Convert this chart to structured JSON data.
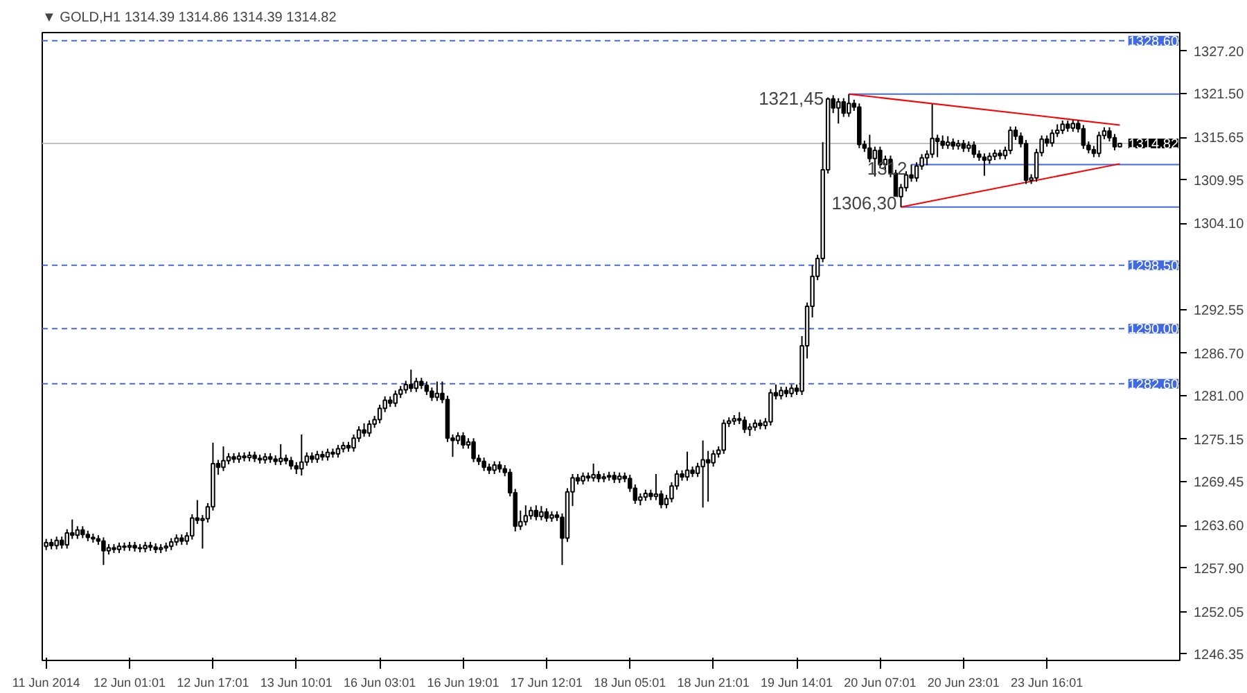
{
  "chart_data": {
    "type": "candlestick",
    "title": "▼ GOLD,H1  1314.39 1314.86 1314.39 1314.82",
    "categories": [
      "11 Jun 2014",
      null,
      null,
      null,
      null,
      null,
      null,
      null,
      null,
      null,
      null,
      null,
      null,
      null,
      null,
      null,
      "12 Jun 01:01",
      null,
      null,
      null,
      null,
      null,
      null,
      null,
      null,
      null,
      null,
      null,
      null,
      null,
      null,
      null,
      "12 Jun 17:01",
      null,
      null,
      null,
      null,
      null,
      null,
      null,
      null,
      null,
      null,
      null,
      null,
      null,
      null,
      null,
      "13 Jun 10:01",
      null,
      null,
      null,
      null,
      null,
      null,
      null,
      null,
      null,
      null,
      null,
      null,
      null,
      null,
      null,
      "16 Jun 03:01",
      null,
      null,
      null,
      null,
      null,
      null,
      null,
      null,
      null,
      null,
      null,
      null,
      null,
      null,
      null,
      "16 Jun 19:01",
      null,
      null,
      null,
      null,
      null,
      null,
      null,
      null,
      null,
      null,
      null,
      null,
      null,
      null,
      null,
      "17 Jun 12:01",
      null,
      null,
      null,
      null,
      null,
      null,
      null,
      null,
      null,
      null,
      null,
      null,
      null,
      null,
      null,
      "18 Jun 05:01",
      null,
      null,
      null,
      null,
      null,
      null,
      null,
      null,
      null,
      null,
      null,
      null,
      null,
      null,
      null,
      "18 Jun 21:01",
      null,
      null,
      null,
      null,
      null,
      null,
      null,
      null,
      null,
      null,
      null,
      null,
      null,
      null,
      null,
      "19 Jun 14:01",
      null,
      null,
      null,
      null,
      null,
      null,
      null,
      null,
      null,
      null,
      null,
      null,
      null,
      null,
      null,
      "20 Jun 07:01",
      null,
      null,
      null,
      null,
      null,
      null,
      null,
      null,
      null,
      null,
      null,
      null,
      null,
      null,
      null,
      "20 Jun 23:01",
      null,
      null,
      null,
      null,
      null,
      null,
      null,
      null,
      null,
      null,
      null,
      null,
      null,
      null,
      null,
      "23 Jun 16:01",
      null,
      null,
      null,
      null,
      null,
      null,
      null,
      null,
      null,
      null,
      null,
      null,
      null,
      null
    ],
    "ohlc": [
      [
        1260.8,
        1261.8,
        1260.3,
        1261.3
      ],
      [
        1261.3,
        1261.8,
        1260.4,
        1260.9
      ],
      [
        1260.9,
        1262.1,
        1260.4,
        1261.6
      ],
      [
        1261.6,
        1262.1,
        1260.5,
        1261.0
      ],
      [
        1261.0,
        1263.1,
        1260.5,
        1262.6
      ],
      [
        1262.6,
        1264.4,
        1261.8,
        1262.3
      ],
      [
        1262.3,
        1263.5,
        1261.8,
        1263.0
      ],
      [
        1263.0,
        1263.5,
        1261.9,
        1262.4
      ],
      [
        1262.4,
        1262.9,
        1261.5,
        1262.0
      ],
      [
        1262.0,
        1262.5,
        1261.3,
        1261.8
      ],
      [
        1261.8,
        1262.3,
        1261.0,
        1261.5
      ],
      [
        1261.5,
        1262.0,
        1258.3,
        1260.2
      ],
      [
        1260.2,
        1261.1,
        1259.7,
        1260.6
      ],
      [
        1260.6,
        1261.1,
        1259.9,
        1260.4
      ],
      [
        1260.4,
        1261.3,
        1259.9,
        1260.8
      ],
      [
        1260.8,
        1261.3,
        1260.2,
        1260.7
      ],
      [
        1260.7,
        1261.4,
        1260.2,
        1260.9
      ],
      [
        1260.9,
        1261.4,
        1260.1,
        1260.6
      ],
      [
        1260.6,
        1261.1,
        1260.0,
        1260.5
      ],
      [
        1260.5,
        1261.4,
        1260.0,
        1260.9
      ],
      [
        1260.9,
        1261.4,
        1260.2,
        1260.7
      ],
      [
        1260.7,
        1261.2,
        1259.9,
        1260.4
      ],
      [
        1260.4,
        1261.1,
        1259.9,
        1260.6
      ],
      [
        1260.6,
        1261.3,
        1260.1,
        1260.8
      ],
      [
        1260.8,
        1261.9,
        1260.3,
        1261.4
      ],
      [
        1261.4,
        1262.4,
        1260.9,
        1261.9
      ],
      [
        1261.9,
        1262.4,
        1261.0,
        1261.5
      ],
      [
        1261.5,
        1262.7,
        1261.0,
        1262.2
      ],
      [
        1262.2,
        1265.1,
        1261.7,
        1264.6
      ],
      [
        1264.6,
        1267.0,
        1263.8,
        1264.3
      ],
      [
        1264.3,
        1265.0,
        1260.5,
        1264.5
      ],
      [
        1264.5,
        1266.6,
        1264.0,
        1266.1
      ],
      [
        1266.1,
        1274.7,
        1265.6,
        1271.9
      ],
      [
        1271.9,
        1272.4,
        1270.4,
        1271.4
      ],
      [
        1271.4,
        1274.2,
        1270.9,
        1272.3
      ],
      [
        1272.3,
        1273.3,
        1271.8,
        1272.8
      ],
      [
        1272.8,
        1273.3,
        1272.0,
        1272.5
      ],
      [
        1272.5,
        1273.4,
        1272.0,
        1272.9
      ],
      [
        1272.9,
        1273.4,
        1272.2,
        1272.7
      ],
      [
        1272.7,
        1273.5,
        1272.2,
        1273.0
      ],
      [
        1273.0,
        1273.5,
        1272.1,
        1272.6
      ],
      [
        1272.6,
        1273.1,
        1271.9,
        1272.4
      ],
      [
        1272.4,
        1273.3,
        1271.9,
        1272.8
      ],
      [
        1272.8,
        1273.3,
        1272.0,
        1272.5
      ],
      [
        1272.5,
        1273.0,
        1271.7,
        1272.2
      ],
      [
        1272.2,
        1274.5,
        1271.7,
        1272.6
      ],
      [
        1272.6,
        1273.1,
        1271.8,
        1272.3
      ],
      [
        1272.3,
        1272.8,
        1271.1,
        1271.6
      ],
      [
        1271.6,
        1272.1,
        1270.5,
        1271.2
      ],
      [
        1271.2,
        1275.8,
        1270.3,
        1272.1
      ],
      [
        1272.1,
        1273.4,
        1271.6,
        1272.9
      ],
      [
        1272.9,
        1273.4,
        1272.0,
        1272.5
      ],
      [
        1272.5,
        1273.6,
        1272.0,
        1273.1
      ],
      [
        1273.1,
        1273.6,
        1272.3,
        1272.8
      ],
      [
        1272.8,
        1273.9,
        1272.3,
        1273.4
      ],
      [
        1273.4,
        1273.9,
        1272.7,
        1273.2
      ],
      [
        1273.2,
        1274.4,
        1272.7,
        1273.9
      ],
      [
        1273.9,
        1274.8,
        1273.4,
        1274.3
      ],
      [
        1274.3,
        1274.8,
        1273.5,
        1274.0
      ],
      [
        1274.0,
        1275.8,
        1273.5,
        1275.3
      ],
      [
        1275.3,
        1276.9,
        1274.8,
        1276.4
      ],
      [
        1276.4,
        1277.3,
        1275.5,
        1276.0
      ],
      [
        1276.0,
        1277.7,
        1275.5,
        1277.2
      ],
      [
        1277.2,
        1278.3,
        1276.7,
        1277.8
      ],
      [
        1277.8,
        1279.8,
        1277.3,
        1279.3
      ],
      [
        1279.3,
        1280.9,
        1278.8,
        1280.4
      ],
      [
        1280.4,
        1280.9,
        1279.5,
        1280.0
      ],
      [
        1280.0,
        1281.7,
        1279.5,
        1281.2
      ],
      [
        1281.2,
        1282.3,
        1280.7,
        1281.8
      ],
      [
        1281.8,
        1283.0,
        1281.3,
        1282.5
      ],
      [
        1282.5,
        1284.5,
        1281.5,
        1282.0
      ],
      [
        1282.0,
        1283.4,
        1281.5,
        1282.9
      ],
      [
        1282.9,
        1283.4,
        1281.9,
        1282.4
      ],
      [
        1282.4,
        1282.9,
        1281.1,
        1281.6
      ],
      [
        1281.6,
        1282.1,
        1280.3,
        1280.8
      ],
      [
        1280.8,
        1282.9,
        1280.3,
        1281.3
      ],
      [
        1281.3,
        1282.9,
        1280.0,
        1280.5
      ],
      [
        1280.5,
        1281.0,
        1274.8,
        1275.3
      ],
      [
        1275.3,
        1275.8,
        1272.8,
        1275.0
      ],
      [
        1275.0,
        1276.1,
        1274.5,
        1275.6
      ],
      [
        1275.6,
        1276.1,
        1273.9,
        1274.4
      ],
      [
        1274.4,
        1275.3,
        1273.9,
        1274.8
      ],
      [
        1274.8,
        1275.3,
        1272.1,
        1272.6
      ],
      [
        1272.6,
        1273.1,
        1271.7,
        1272.2
      ],
      [
        1272.2,
        1272.7,
        1270.9,
        1271.4
      ],
      [
        1271.4,
        1271.9,
        1270.5,
        1271.0
      ],
      [
        1271.0,
        1272.2,
        1270.5,
        1271.7
      ],
      [
        1271.7,
        1272.2,
        1270.7,
        1271.2
      ],
      [
        1271.2,
        1271.7,
        1270.2,
        1270.7
      ],
      [
        1270.7,
        1271.2,
        1267.5,
        1268.0
      ],
      [
        1268.0,
        1268.5,
        1262.8,
        1263.5
      ],
      [
        1263.5,
        1265.6,
        1263.0,
        1264.1
      ],
      [
        1264.1,
        1266.3,
        1263.6,
        1264.9
      ],
      [
        1264.9,
        1266.1,
        1264.4,
        1265.6
      ],
      [
        1265.6,
        1266.3,
        1264.3,
        1264.8
      ],
      [
        1264.8,
        1266.2,
        1264.3,
        1265.4
      ],
      [
        1265.4,
        1265.9,
        1264.1,
        1264.6
      ],
      [
        1264.6,
        1265.5,
        1264.1,
        1265.0
      ],
      [
        1265.0,
        1265.5,
        1264.2,
        1264.7
      ],
      [
        1264.7,
        1265.2,
        1258.3,
        1261.9
      ],
      [
        1261.9,
        1268.6,
        1261.4,
        1268.1
      ],
      [
        1268.1,
        1270.5,
        1266.2,
        1270.0
      ],
      [
        1270.0,
        1270.5,
        1269.1,
        1269.6
      ],
      [
        1269.6,
        1270.7,
        1269.1,
        1270.2
      ],
      [
        1270.2,
        1270.7,
        1269.5,
        1270.0
      ],
      [
        1270.0,
        1271.9,
        1269.5,
        1270.4
      ],
      [
        1270.4,
        1270.9,
        1269.4,
        1269.9
      ],
      [
        1269.9,
        1270.6,
        1269.4,
        1270.1
      ],
      [
        1270.1,
        1270.8,
        1269.6,
        1270.3
      ],
      [
        1270.3,
        1270.8,
        1269.3,
        1269.8
      ],
      [
        1269.8,
        1270.7,
        1269.3,
        1270.2
      ],
      [
        1270.2,
        1270.7,
        1269.4,
        1269.9
      ],
      [
        1269.9,
        1270.4,
        1268.1,
        1268.6
      ],
      [
        1268.6,
        1269.1,
        1266.5,
        1267.0
      ],
      [
        1267.0,
        1267.9,
        1266.3,
        1267.4
      ],
      [
        1267.4,
        1268.4,
        1266.9,
        1267.9
      ],
      [
        1267.9,
        1268.4,
        1267.0,
        1267.5
      ],
      [
        1267.5,
        1270.5,
        1267.0,
        1267.8
      ],
      [
        1267.8,
        1268.3,
        1265.9,
        1266.4
      ],
      [
        1266.4,
        1267.7,
        1265.9,
        1267.2
      ],
      [
        1267.2,
        1269.4,
        1266.7,
        1268.9
      ],
      [
        1268.9,
        1271.0,
        1268.4,
        1270.5
      ],
      [
        1270.5,
        1271.0,
        1269.6,
        1270.1
      ],
      [
        1270.1,
        1273.5,
        1269.6,
        1271.0
      ],
      [
        1271.0,
        1271.5,
        1270.1,
        1270.6
      ],
      [
        1270.6,
        1272.0,
        1270.1,
        1271.5
      ],
      [
        1271.5,
        1275.0,
        1266.0,
        1272.4
      ],
      [
        1272.4,
        1273.6,
        1266.8,
        1272.0
      ],
      [
        1272.0,
        1273.7,
        1271.5,
        1273.2
      ],
      [
        1273.2,
        1274.2,
        1272.7,
        1273.7
      ],
      [
        1273.7,
        1277.8,
        1273.2,
        1277.3
      ],
      [
        1277.3,
        1278.1,
        1276.8,
        1277.6
      ],
      [
        1277.6,
        1278.4,
        1277.1,
        1277.9
      ],
      [
        1277.9,
        1278.8,
        1277.2,
        1277.7
      ],
      [
        1277.7,
        1278.2,
        1276.0,
        1276.5
      ],
      [
        1276.5,
        1277.3,
        1275.6,
        1276.8
      ],
      [
        1276.8,
        1277.8,
        1276.3,
        1277.3
      ],
      [
        1277.3,
        1277.8,
        1276.5,
        1277.0
      ],
      [
        1277.0,
        1278.0,
        1276.5,
        1277.5
      ],
      [
        1277.5,
        1281.9,
        1277.0,
        1281.4
      ],
      [
        1281.4,
        1282.5,
        1280.5,
        1281.0
      ],
      [
        1281.0,
        1282.2,
        1280.5,
        1281.7
      ],
      [
        1281.7,
        1282.2,
        1280.8,
        1281.3
      ],
      [
        1281.3,
        1282.5,
        1280.8,
        1282.0
      ],
      [
        1282.0,
        1282.5,
        1281.1,
        1281.6
      ],
      [
        1281.6,
        1289.0,
        1281.1,
        1287.7
      ],
      [
        1287.7,
        1293.5,
        1286.0,
        1293.0
      ],
      [
        1293.0,
        1298.5,
        1291.5,
        1297.0
      ],
      [
        1297.0,
        1299.9,
        1296.5,
        1299.4
      ],
      [
        1299.4,
        1315.0,
        1298.9,
        1311.3
      ],
      [
        1311.3,
        1321.0,
        1310.8,
        1320.8
      ],
      [
        1320.8,
        1321.3,
        1318.9,
        1319.6
      ],
      [
        1319.6,
        1320.9,
        1317.5,
        1320.4
      ],
      [
        1320.4,
        1320.9,
        1318.4,
        1318.9
      ],
      [
        1318.9,
        1321.45,
        1318.4,
        1320.2
      ],
      [
        1320.2,
        1320.7,
        1319.2,
        1319.7
      ],
      [
        1319.7,
        1320.2,
        1314.2,
        1314.7
      ],
      [
        1314.7,
        1315.2,
        1313.7,
        1314.2
      ],
      [
        1314.2,
        1316.0,
        1312.3,
        1312.8
      ],
      [
        1312.8,
        1314.4,
        1310.4,
        1313.9
      ],
      [
        1313.9,
        1314.4,
        1311.5,
        1312.0
      ],
      [
        1312.0,
        1313.2,
        1311.2,
        1312.7
      ],
      [
        1312.7,
        1313.2,
        1310.3,
        1310.8
      ],
      [
        1310.8,
        1311.3,
        1307.2,
        1307.7
      ],
      [
        1307.7,
        1309.4,
        1306.3,
        1308.9
      ],
      [
        1308.9,
        1311.1,
        1308.4,
        1310.6
      ],
      [
        1310.6,
        1312.0,
        1309.7,
        1310.2
      ],
      [
        1310.2,
        1312.3,
        1309.7,
        1311.8
      ],
      [
        1311.8,
        1313.4,
        1311.3,
        1312.9
      ],
      [
        1312.9,
        1313.9,
        1311.9,
        1313.4
      ],
      [
        1313.4,
        1320.1,
        1312.9,
        1315.5
      ],
      [
        1315.5,
        1316.0,
        1313.0,
        1315.1
      ],
      [
        1315.1,
        1315.9,
        1314.1,
        1314.6
      ],
      [
        1314.6,
        1315.8,
        1314.1,
        1315.0
      ],
      [
        1315.0,
        1315.5,
        1314.0,
        1314.5
      ],
      [
        1314.5,
        1315.3,
        1314.0,
        1314.8
      ],
      [
        1314.8,
        1315.3,
        1313.7,
        1314.2
      ],
      [
        1314.2,
        1315.1,
        1313.7,
        1314.6
      ],
      [
        1314.6,
        1315.1,
        1312.9,
        1313.4
      ],
      [
        1313.4,
        1313.9,
        1312.5,
        1313.0
      ],
      [
        1313.0,
        1313.5,
        1310.5,
        1312.6
      ],
      [
        1312.6,
        1313.6,
        1312.1,
        1313.1
      ],
      [
        1313.1,
        1314.0,
        1312.6,
        1313.5
      ],
      [
        1313.5,
        1314.0,
        1312.7,
        1313.2
      ],
      [
        1313.2,
        1314.4,
        1312.7,
        1313.9
      ],
      [
        1313.9,
        1317.1,
        1313.4,
        1316.6
      ],
      [
        1316.6,
        1317.1,
        1315.3,
        1315.8
      ],
      [
        1315.8,
        1316.3,
        1314.3,
        1314.8
      ],
      [
        1314.8,
        1315.3,
        1309.4,
        1309.9
      ],
      [
        1309.9,
        1310.7,
        1309.4,
        1310.2
      ],
      [
        1310.2,
        1314.1,
        1309.7,
        1313.6
      ],
      [
        1313.6,
        1315.9,
        1313.1,
        1315.4
      ],
      [
        1315.4,
        1315.9,
        1314.4,
        1314.9
      ],
      [
        1314.9,
        1316.7,
        1314.4,
        1316.2
      ],
      [
        1316.2,
        1317.4,
        1315.7,
        1316.6
      ],
      [
        1316.6,
        1317.9,
        1316.1,
        1317.4
      ],
      [
        1317.4,
        1317.9,
        1316.4,
        1316.9
      ],
      [
        1316.9,
        1318.0,
        1316.4,
        1317.5
      ],
      [
        1317.5,
        1318.0,
        1316.3,
        1316.8
      ],
      [
        1316.8,
        1317.3,
        1314.1,
        1314.6
      ],
      [
        1314.6,
        1315.1,
        1313.5,
        1314.0
      ],
      [
        1314.0,
        1314.5,
        1313.0,
        1313.5
      ],
      [
        1313.5,
        1316.4,
        1313.0,
        1315.9
      ],
      [
        1315.9,
        1317.0,
        1315.4,
        1316.5
      ],
      [
        1316.5,
        1317.0,
        1315.1,
        1315.6
      ],
      [
        1315.6,
        1316.1,
        1313.9,
        1314.4
      ],
      [
        1314.39,
        1314.86,
        1314.39,
        1314.82
      ]
    ],
    "series": [
      {
        "type": "line",
        "color": "#ff0000",
        "values": [
          null,
          null,
          null,
          null,
          null,
          null,
          null,
          null,
          null,
          null,
          null,
          null,
          null,
          null,
          null,
          null,
          null,
          null,
          null,
          null,
          null,
          null,
          null,
          null,
          null,
          null,
          null,
          null,
          null,
          null,
          null,
          null,
          null,
          null,
          null,
          null,
          null,
          null,
          null,
          null,
          null,
          null,
          null,
          null,
          null,
          null,
          null,
          null,
          null,
          null,
          null,
          null,
          null,
          null,
          null,
          null,
          null,
          null,
          null,
          null,
          null,
          null,
          null,
          null,
          null,
          null,
          null,
          null,
          null,
          null,
          null,
          null,
          null,
          null,
          null,
          null,
          null,
          null,
          null,
          null,
          null,
          null,
          null,
          null,
          null,
          null,
          null,
          null,
          null,
          null,
          null,
          null,
          null,
          null,
          null,
          null,
          null,
          null,
          null,
          null,
          null,
          null,
          null,
          null,
          null,
          null,
          null,
          null,
          null,
          null,
          null,
          null,
          null,
          null,
          null,
          null,
          null,
          null,
          null,
          null,
          null,
          null,
          null,
          null,
          null,
          null,
          null,
          null,
          null,
          null,
          null,
          null,
          null,
          null,
          null,
          null,
          null,
          null,
          null,
          null,
          null,
          null,
          null,
          null,
          null,
          null,
          null,
          null,
          null,
          null,
          null,
          null,
          null,
          null,
          1321.45,
          null,
          null,
          null,
          null,
          null,
          null,
          null,
          null,
          null,
          null,
          null,
          null,
          null,
          null,
          null,
          null,
          null,
          null,
          null,
          null,
          null,
          null,
          null,
          null,
          null,
          null,
          null,
          null,
          null,
          null,
          null,
          null,
          null,
          null,
          null,
          null,
          null,
          null,
          null,
          null,
          null,
          null,
          null,
          null,
          null,
          null,
          null,
          null,
          null,
          null,
          null,
          1317.3
        ]
      },
      {
        "type": "line",
        "color": "#ff0000",
        "values": [
          null,
          null,
          null,
          null,
          null,
          null,
          null,
          null,
          null,
          null,
          null,
          null,
          null,
          null,
          null,
          null,
          null,
          null,
          null,
          null,
          null,
          null,
          null,
          null,
          null,
          null,
          null,
          null,
          null,
          null,
          null,
          null,
          null,
          null,
          null,
          null,
          null,
          null,
          null,
          null,
          null,
          null,
          null,
          null,
          null,
          null,
          null,
          null,
          null,
          null,
          null,
          null,
          null,
          null,
          null,
          null,
          null,
          null,
          null,
          null,
          null,
          null,
          null,
          null,
          null,
          null,
          null,
          null,
          null,
          null,
          null,
          null,
          null,
          null,
          null,
          null,
          null,
          null,
          null,
          null,
          null,
          null,
          null,
          null,
          null,
          null,
          null,
          null,
          null,
          null,
          null,
          null,
          null,
          null,
          null,
          null,
          null,
          null,
          null,
          null,
          null,
          null,
          null,
          null,
          null,
          null,
          null,
          null,
          null,
          null,
          null,
          null,
          null,
          null,
          null,
          null,
          null,
          null,
          null,
          null,
          null,
          null,
          null,
          null,
          null,
          null,
          null,
          null,
          null,
          null,
          null,
          null,
          null,
          null,
          null,
          null,
          null,
          null,
          null,
          null,
          null,
          null,
          null,
          null,
          null,
          null,
          null,
          null,
          null,
          null,
          null,
          null,
          null,
          null,
          null,
          null,
          null,
          null,
          null,
          null,
          null,
          null,
          null,
          null,
          1306.3,
          null,
          null,
          null,
          null,
          null,
          null,
          null,
          null,
          null,
          null,
          null,
          null,
          null,
          null,
          null,
          null,
          null,
          null,
          null,
          null,
          null,
          null,
          null,
          null,
          null,
          null,
          null,
          null,
          null,
          null,
          null,
          null,
          null,
          null,
          null,
          null,
          null,
          null,
          null,
          null,
          null,
          1312.1
        ]
      }
    ],
    "ylim": [
      1245.5,
      1329.7
    ],
    "yticks": [
      {
        "value": 1327.2,
        "label": "1327.20"
      },
      {
        "value": 1321.5,
        "label": "1321.50"
      },
      {
        "value": 1315.65,
        "label": "1315.65"
      },
      {
        "value": 1309.95,
        "label": "1309.95"
      },
      {
        "value": 1304.1,
        "label": "1304.10"
      },
      {
        "value": 1292.55,
        "label": "1292.55"
      },
      {
        "value": 1286.7,
        "label": "1286.70"
      },
      {
        "value": 1281.0,
        "label": "1281.00"
      },
      {
        "value": 1275.15,
        "label": "1275.15"
      },
      {
        "value": 1269.45,
        "label": "1269.45"
      },
      {
        "value": 1263.6,
        "label": "1263.60"
      },
      {
        "value": 1257.9,
        "label": "1257.90"
      },
      {
        "value": 1252.05,
        "label": "1252.05"
      },
      {
        "value": 1246.35,
        "label": "1246.35"
      }
    ],
    "ref_lines": [
      {
        "axis": "y",
        "value": 1328.6,
        "label": "1328.60",
        "color": "#4169e1",
        "line_style": "dashed"
      },
      {
        "axis": "y",
        "value": 1298.5,
        "label": "1298.50",
        "color": "#4169e1",
        "line_style": "dashed"
      },
      {
        "axis": "y",
        "value": 1290.0,
        "label": "1290.00",
        "color": "#4169e1",
        "line_style": "dashed"
      },
      {
        "axis": "y",
        "value": 1282.6,
        "label": "1282.60",
        "color": "#4169e1",
        "line_style": "dashed"
      },
      {
        "axis": "y",
        "value": 1314.82,
        "label": "1314.82",
        "color": "#c0c0c0",
        "line_style": "solid"
      },
      {
        "axis": "y",
        "value": 1321.45,
        "color": "#4169e1",
        "line_style": "solid"
      },
      {
        "axis": "y",
        "value": 1306.3,
        "color": "#4169e1",
        "line_style": "solid"
      },
      {
        "axis": "y",
        "value": 1312.0,
        "color": "#4169e1",
        "line_style": "solid"
      }
    ],
    "annotations": [
      "1321,45",
      "1306,30",
      {
        "text": "1312",
        "y": 1312.0
      }
    ],
    "grid": false
  }
}
